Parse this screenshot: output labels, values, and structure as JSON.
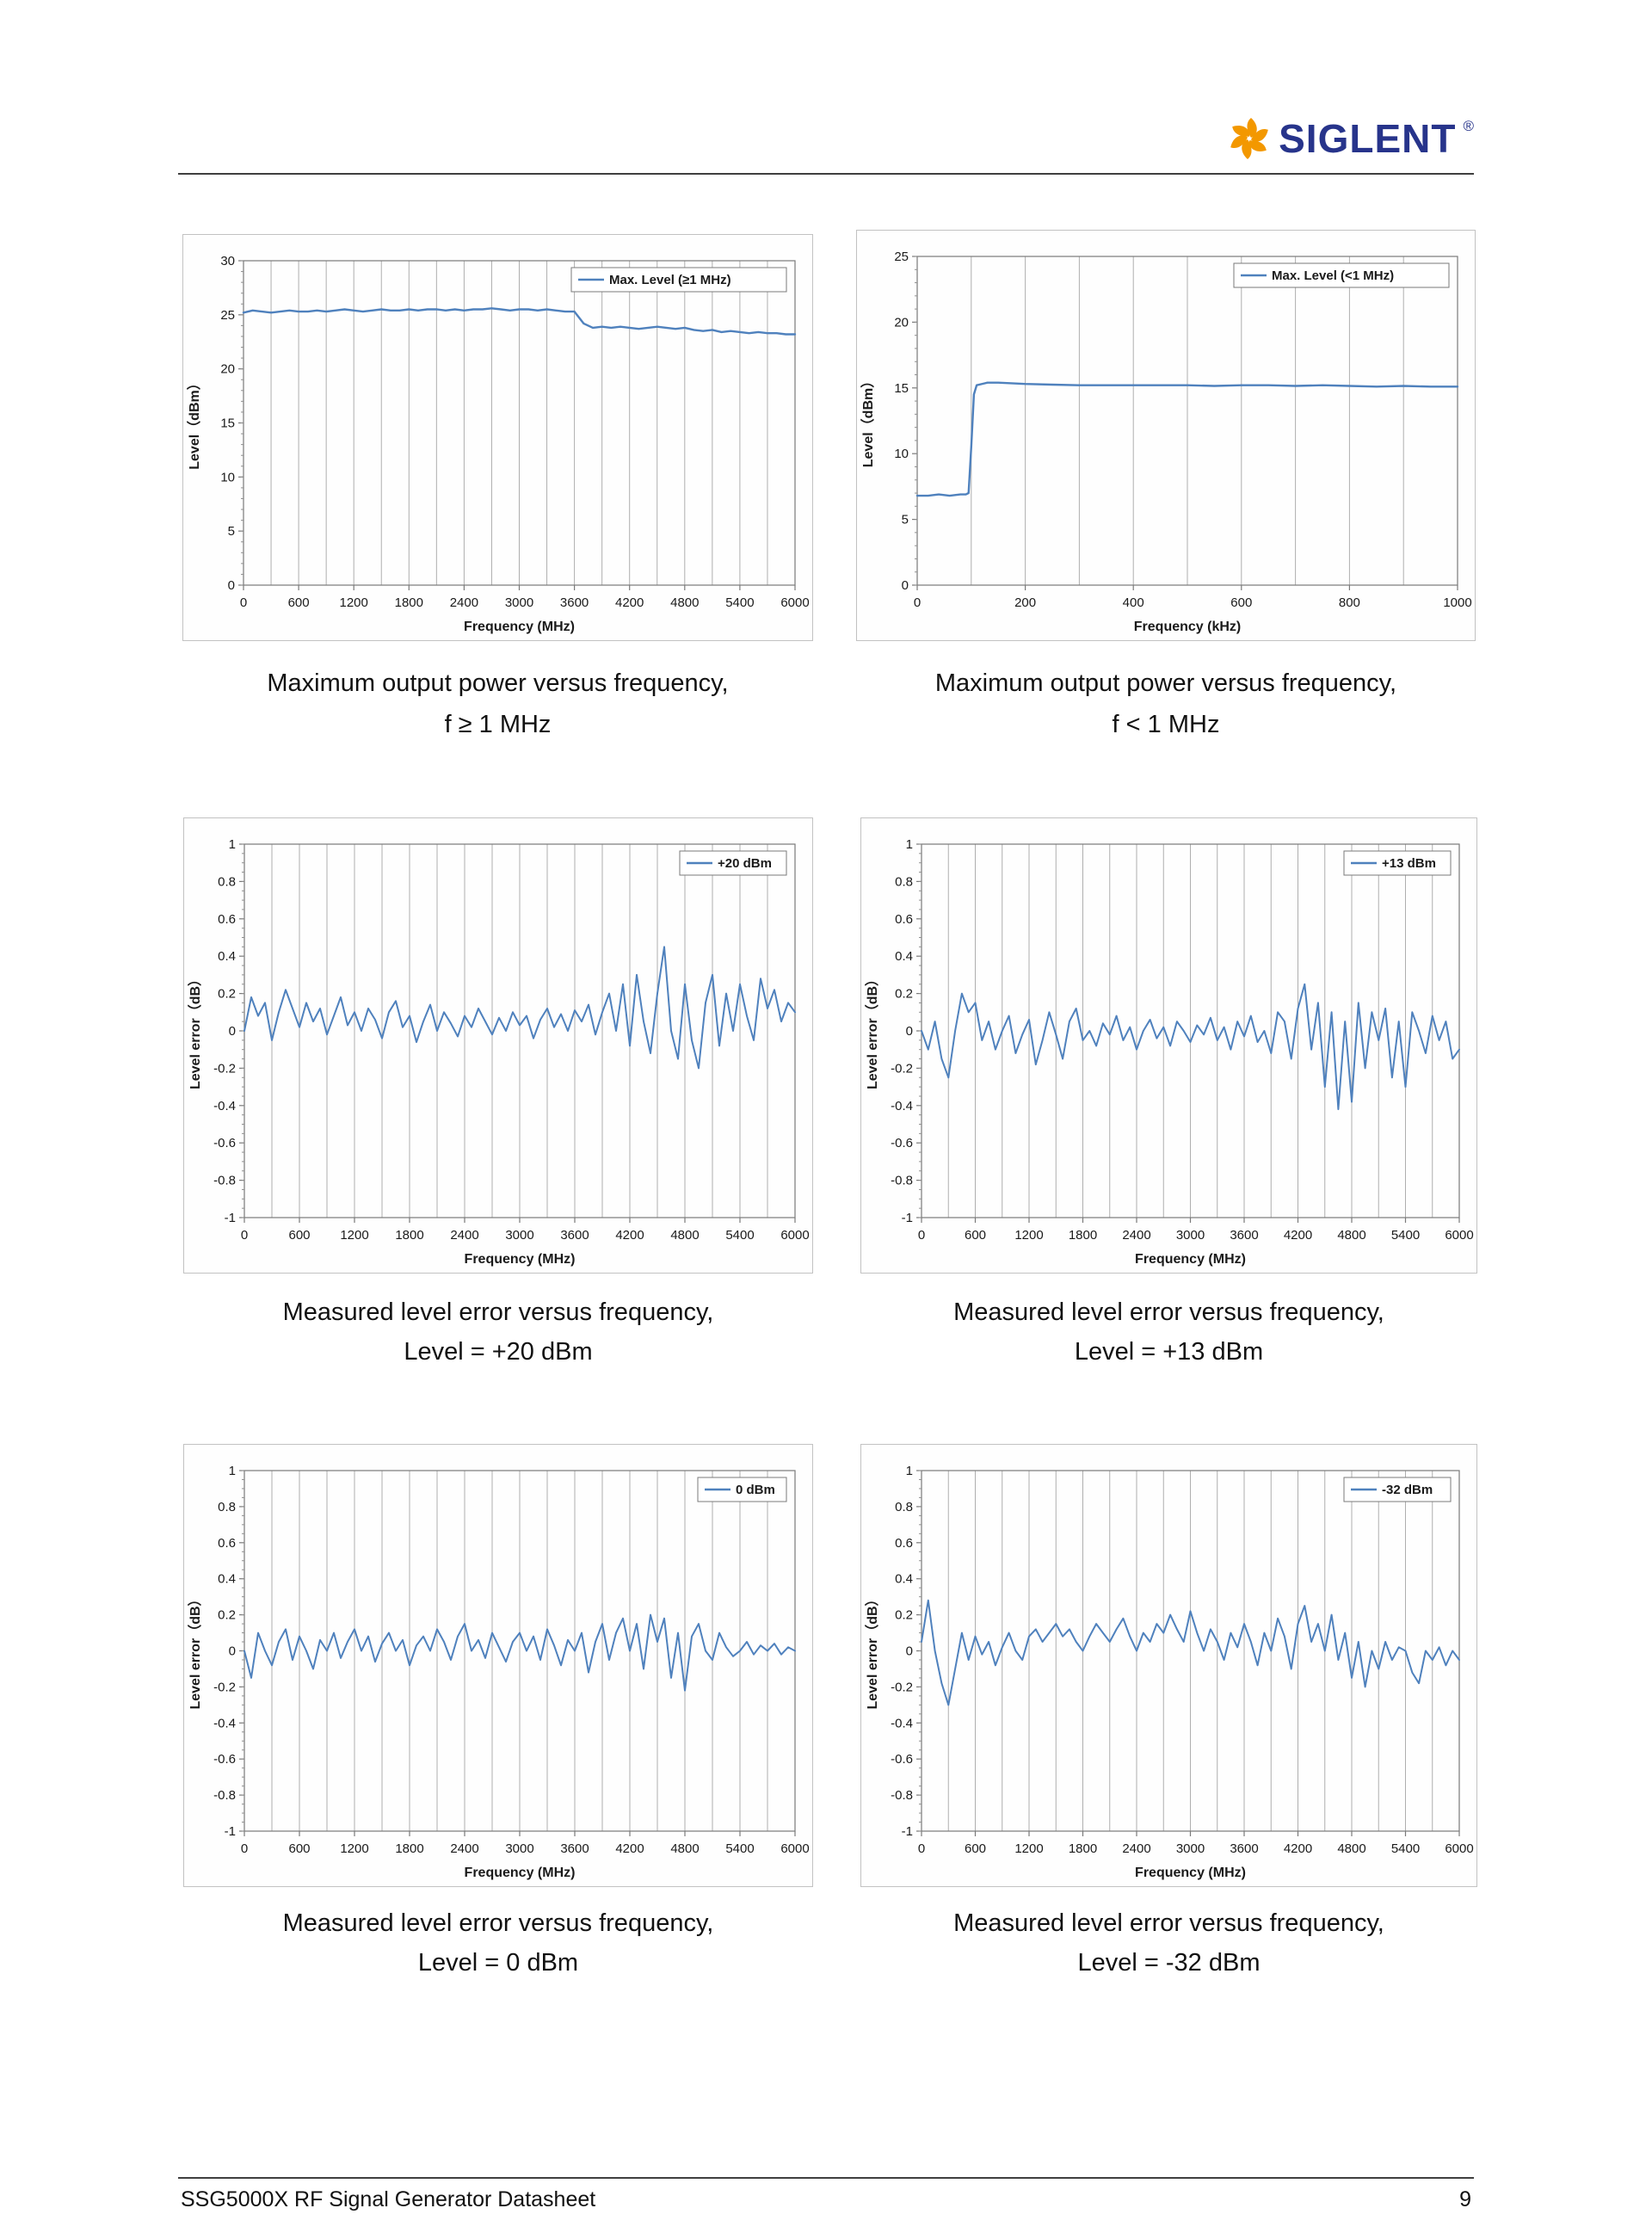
{
  "header": {
    "logo_text": "SIGLENT",
    "logo_reg": "®"
  },
  "footer": {
    "left": "SSG5000X RF Signal Generator Datasheet",
    "page": "9"
  },
  "figures": [
    {
      "caption_line1": "Maximum output power versus frequency,",
      "caption_line2": "f ≥ 1 MHz"
    },
    {
      "caption_line1": "Maximum output power versus frequency,",
      "caption_line2": "f < 1 MHz"
    },
    {
      "caption_line1": "Measured level error versus frequency,",
      "caption_line2": "Level = +20 dBm"
    },
    {
      "caption_line1": "Measured level error versus frequency,",
      "caption_line2": "Level = +13 dBm"
    },
    {
      "caption_line1": "Measured level error versus frequency,",
      "caption_line2": "Level = 0 dBm"
    },
    {
      "caption_line1": "Measured level error versus frequency,",
      "caption_line2": "Level = -32 dBm"
    }
  ],
  "chart_data": [
    {
      "type": "line",
      "legend": "Max. Level (≥1 MHz)",
      "xlabel": "Frequency (MHz)",
      "ylabel": "Level（dBm）",
      "xlim": [
        0,
        6000
      ],
      "ylim": [
        0,
        30
      ],
      "xticks": [
        0,
        600,
        1200,
        1800,
        2400,
        3000,
        3600,
        4200,
        4800,
        5400,
        6000
      ],
      "yticks": [
        0,
        5,
        10,
        15,
        20,
        25,
        30
      ],
      "x_grid_step": 300,
      "y_minor_step": 1,
      "line_color": "#4f81bd",
      "line_width": 2.4,
      "x_start": 0,
      "x_step": 100,
      "y": [
        25.2,
        25.4,
        25.3,
        25.2,
        25.3,
        25.4,
        25.3,
        25.3,
        25.4,
        25.3,
        25.4,
        25.5,
        25.4,
        25.3,
        25.4,
        25.5,
        25.4,
        25.4,
        25.5,
        25.4,
        25.5,
        25.5,
        25.4,
        25.5,
        25.4,
        25.5,
        25.5,
        25.6,
        25.5,
        25.4,
        25.5,
        25.5,
        25.4,
        25.5,
        25.4,
        25.3,
        25.3,
        24.2,
        23.8,
        23.9,
        23.8,
        23.9,
        23.8,
        23.7,
        23.8,
        23.9,
        23.8,
        23.7,
        23.8,
        23.6,
        23.5,
        23.6,
        23.4,
        23.5,
        23.4,
        23.3,
        23.4,
        23.3,
        23.3,
        23.2,
        23.2
      ]
    },
    {
      "type": "line",
      "legend": "Max. Level (<1 MHz)",
      "xlabel": "Frequency (kHz)",
      "ylabel": "Level（dBm）",
      "xlim": [
        0,
        1000
      ],
      "ylim": [
        0,
        25
      ],
      "xticks": [
        0,
        200,
        400,
        600,
        800,
        1000
      ],
      "yticks": [
        0,
        5,
        10,
        15,
        20,
        25
      ],
      "x_grid_step": 100,
      "y_minor_step": 1,
      "line_color": "#4f81bd",
      "line_width": 2.4,
      "x": [
        0,
        20,
        40,
        60,
        80,
        90,
        95,
        100,
        105,
        110,
        130,
        150,
        200,
        250,
        300,
        350,
        400,
        450,
        500,
        550,
        600,
        650,
        700,
        750,
        800,
        850,
        900,
        950,
        1000
      ],
      "y": [
        6.8,
        6.8,
        6.9,
        6.8,
        6.9,
        6.9,
        7.0,
        10.5,
        14.5,
        15.2,
        15.4,
        15.4,
        15.3,
        15.25,
        15.2,
        15.2,
        15.2,
        15.2,
        15.2,
        15.15,
        15.2,
        15.2,
        15.15,
        15.2,
        15.15,
        15.1,
        15.15,
        15.1,
        15.1
      ]
    },
    {
      "type": "line",
      "legend": "+20 dBm",
      "xlabel": "Frequency (MHz)",
      "ylabel": "Level error（dB）",
      "xlim": [
        0,
        6000
      ],
      "ylim": [
        -1,
        1
      ],
      "xticks": [
        0,
        600,
        1200,
        1800,
        2400,
        3000,
        3600,
        4200,
        4800,
        5400,
        6000
      ],
      "yticks": [
        1,
        0.8,
        0.6,
        0.4,
        0.2,
        0,
        -0.2,
        -0.4,
        -0.6,
        -0.8,
        -1
      ],
      "x_grid_step": 300,
      "y_minor_step": 0.05,
      "line_color": "#4f81bd",
      "line_width": 2,
      "x_start": 0,
      "x_step": 75,
      "y": [
        0.0,
        0.18,
        0.08,
        0.15,
        -0.05,
        0.1,
        0.22,
        0.12,
        0.02,
        0.15,
        0.05,
        0.12,
        -0.02,
        0.08,
        0.18,
        0.03,
        0.1,
        0.0,
        0.12,
        0.06,
        -0.04,
        0.1,
        0.16,
        0.02,
        0.08,
        -0.06,
        0.05,
        0.14,
        0.0,
        0.1,
        0.04,
        -0.03,
        0.08,
        0.02,
        0.12,
        0.05,
        -0.02,
        0.07,
        0.0,
        0.1,
        0.03,
        0.08,
        -0.04,
        0.06,
        0.12,
        0.02,
        0.09,
        0.0,
        0.11,
        0.05,
        0.14,
        -0.02,
        0.1,
        0.2,
        0.0,
        0.25,
        -0.08,
        0.3,
        0.05,
        -0.12,
        0.2,
        0.45,
        0.0,
        -0.15,
        0.25,
        -0.05,
        -0.2,
        0.15,
        0.3,
        -0.08,
        0.2,
        0.0,
        0.25,
        0.08,
        -0.05,
        0.28,
        0.12,
        0.22,
        0.05,
        0.15,
        0.1
      ]
    },
    {
      "type": "line",
      "legend": "+13 dBm",
      "xlabel": "Frequency (MHz)",
      "ylabel": "Level error（dB）",
      "xlim": [
        0,
        6000
      ],
      "ylim": [
        -1,
        1
      ],
      "xticks": [
        0,
        600,
        1200,
        1800,
        2400,
        3000,
        3600,
        4200,
        4800,
        5400,
        6000
      ],
      "yticks": [
        1,
        0.8,
        0.6,
        0.4,
        0.2,
        0,
        -0.2,
        -0.4,
        -0.6,
        -0.8,
        -1
      ],
      "x_grid_step": 300,
      "y_minor_step": 0.05,
      "line_color": "#4f81bd",
      "line_width": 2,
      "x_start": 0,
      "x_step": 75,
      "y": [
        0.0,
        -0.1,
        0.05,
        -0.15,
        -0.25,
        0.0,
        0.2,
        0.1,
        0.15,
        -0.05,
        0.05,
        -0.1,
        0.0,
        0.08,
        -0.12,
        -0.02,
        0.06,
        -0.18,
        -0.05,
        0.1,
        -0.02,
        -0.15,
        0.05,
        0.12,
        -0.05,
        0.0,
        -0.08,
        0.04,
        -0.02,
        0.08,
        -0.05,
        0.02,
        -0.1,
        0.0,
        0.06,
        -0.04,
        0.02,
        -0.08,
        0.05,
        0.0,
        -0.06,
        0.03,
        -0.02,
        0.07,
        -0.05,
        0.02,
        -0.1,
        0.05,
        -0.03,
        0.08,
        -0.06,
        0.0,
        -0.12,
        0.1,
        0.05,
        -0.15,
        0.12,
        0.25,
        -0.1,
        0.15,
        -0.3,
        0.1,
        -0.42,
        0.05,
        -0.38,
        0.15,
        -0.2,
        0.1,
        -0.05,
        0.12,
        -0.25,
        0.05,
        -0.3,
        0.1,
        0.0,
        -0.12,
        0.08,
        -0.05,
        0.05,
        -0.15,
        -0.1
      ]
    },
    {
      "type": "line",
      "legend": "0 dBm",
      "xlabel": "Frequency (MHz)",
      "ylabel": "Level error（dB）",
      "xlim": [
        0,
        6000
      ],
      "ylim": [
        -1,
        1
      ],
      "xticks": [
        0,
        600,
        1200,
        1800,
        2400,
        3000,
        3600,
        4200,
        4800,
        5400,
        6000
      ],
      "yticks": [
        1,
        0.8,
        0.6,
        0.4,
        0.2,
        0,
        -0.2,
        -0.4,
        -0.6,
        -0.8,
        -1
      ],
      "x_grid_step": 300,
      "y_minor_step": 0.05,
      "line_color": "#4f81bd",
      "line_width": 2,
      "x_start": 0,
      "x_step": 75,
      "y": [
        0.0,
        -0.15,
        0.1,
        0.0,
        -0.08,
        0.05,
        0.12,
        -0.05,
        0.08,
        0.0,
        -0.1,
        0.06,
        0.0,
        0.1,
        -0.04,
        0.05,
        0.12,
        0.0,
        0.08,
        -0.06,
        0.04,
        0.1,
        0.0,
        0.06,
        -0.08,
        0.03,
        0.08,
        0.0,
        0.12,
        0.05,
        -0.05,
        0.08,
        0.15,
        0.0,
        0.06,
        -0.04,
        0.1,
        0.02,
        -0.06,
        0.05,
        0.1,
        0.0,
        0.08,
        -0.05,
        0.12,
        0.03,
        -0.08,
        0.06,
        0.0,
        0.1,
        -0.12,
        0.05,
        0.15,
        -0.05,
        0.1,
        0.18,
        0.0,
        0.15,
        -0.1,
        0.2,
        0.05,
        0.18,
        -0.15,
        0.1,
        -0.22,
        0.08,
        0.15,
        0.0,
        -0.05,
        0.1,
        0.02,
        -0.03,
        0.0,
        0.05,
        -0.02,
        0.03,
        0.0,
        0.04,
        -0.02,
        0.02,
        0.0
      ]
    },
    {
      "type": "line",
      "legend": "-32 dBm",
      "xlabel": "Frequency (MHz)",
      "ylabel": "Level error（dB）",
      "xlim": [
        0,
        6000
      ],
      "ylim": [
        -1,
        1
      ],
      "xticks": [
        0,
        600,
        1200,
        1800,
        2400,
        3000,
        3600,
        4200,
        4800,
        5400,
        6000
      ],
      "yticks": [
        1,
        0.8,
        0.6,
        0.4,
        0.2,
        0,
        -0.2,
        -0.4,
        -0.6,
        -0.8,
        -1
      ],
      "x_grid_step": 300,
      "y_minor_step": 0.05,
      "line_color": "#4f81bd",
      "line_width": 2,
      "x_start": 0,
      "x_step": 75,
      "y": [
        0.05,
        0.28,
        0.0,
        -0.18,
        -0.3,
        -0.1,
        0.1,
        -0.05,
        0.08,
        -0.02,
        0.05,
        -0.08,
        0.02,
        0.1,
        0.0,
        -0.05,
        0.08,
        0.12,
        0.05,
        0.1,
        0.15,
        0.08,
        0.12,
        0.05,
        0.0,
        0.08,
        0.15,
        0.1,
        0.05,
        0.12,
        0.18,
        0.08,
        0.0,
        0.1,
        0.05,
        0.15,
        0.1,
        0.2,
        0.12,
        0.05,
        0.22,
        0.1,
        0.0,
        0.12,
        0.05,
        -0.05,
        0.1,
        0.02,
        0.15,
        0.05,
        -0.08,
        0.1,
        0.0,
        0.18,
        0.08,
        -0.1,
        0.15,
        0.25,
        0.05,
        0.15,
        0.0,
        0.2,
        -0.05,
        0.1,
        -0.15,
        0.05,
        -0.2,
        0.0,
        -0.1,
        0.05,
        -0.05,
        0.02,
        0.0,
        -0.12,
        -0.18,
        0.0,
        -0.05,
        0.02,
        -0.08,
        0.0,
        -0.05
      ]
    }
  ]
}
